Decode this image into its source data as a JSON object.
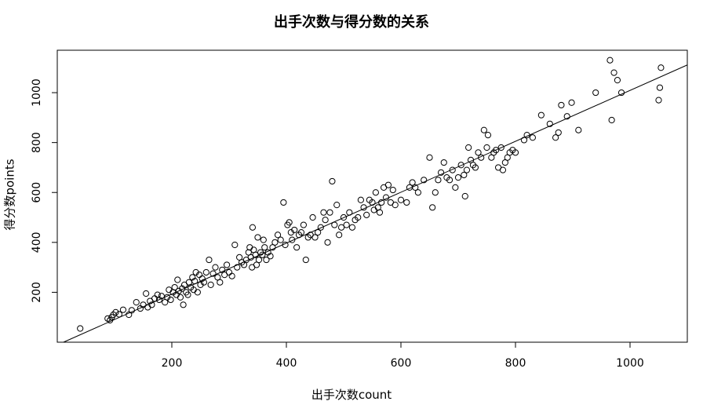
{
  "chart_data": {
    "type": "scatter",
    "title": "出手次数与得分数的关系",
    "xlabel": "出手次数count",
    "ylabel": "得分数points",
    "xlim": [
      0,
      1100
    ],
    "ylim": [
      0,
      1170
    ],
    "x_ticks": [
      200,
      400,
      600,
      800,
      1000
    ],
    "y_ticks": [
      200,
      400,
      600,
      800,
      1000
    ],
    "grid": false,
    "regression_line": {
      "slope": 1.02,
      "intercept": -11
    },
    "points": [
      [
        40,
        55
      ],
      [
        88,
        95
      ],
      [
        92,
        88
      ],
      [
        95,
        100
      ],
      [
        98,
        110
      ],
      [
        102,
        120
      ],
      [
        108,
        112
      ],
      [
        115,
        130
      ],
      [
        125,
        110
      ],
      [
        130,
        128
      ],
      [
        138,
        160
      ],
      [
        145,
        135
      ],
      [
        150,
        150
      ],
      [
        155,
        195
      ],
      [
        158,
        140
      ],
      [
        162,
        165
      ],
      [
        165,
        150
      ],
      [
        170,
        175
      ],
      [
        175,
        190
      ],
      [
        178,
        170
      ],
      [
        182,
        185
      ],
      [
        188,
        160
      ],
      [
        192,
        180
      ],
      [
        195,
        210
      ],
      [
        198,
        170
      ],
      [
        202,
        200
      ],
      [
        205,
        220
      ],
      [
        208,
        190
      ],
      [
        210,
        250
      ],
      [
        212,
        205
      ],
      [
        215,
        180
      ],
      [
        218,
        215
      ],
      [
        220,
        150
      ],
      [
        222,
        230
      ],
      [
        225,
        200
      ],
      [
        228,
        190
      ],
      [
        230,
        240
      ],
      [
        233,
        220
      ],
      [
        236,
        260
      ],
      [
        238,
        210
      ],
      [
        240,
        245
      ],
      [
        242,
        280
      ],
      [
        245,
        200
      ],
      [
        248,
        270
      ],
      [
        250,
        230
      ],
      [
        253,
        255
      ],
      [
        256,
        240
      ],
      [
        260,
        280
      ],
      [
        265,
        330
      ],
      [
        268,
        230
      ],
      [
        272,
        275
      ],
      [
        276,
        300
      ],
      [
        280,
        260
      ],
      [
        284,
        240
      ],
      [
        288,
        290
      ],
      [
        292,
        270
      ],
      [
        296,
        310
      ],
      [
        300,
        280
      ],
      [
        305,
        265
      ],
      [
        310,
        390
      ],
      [
        314,
        300
      ],
      [
        318,
        340
      ],
      [
        322,
        320
      ],
      [
        326,
        310
      ],
      [
        330,
        330
      ],
      [
        334,
        360
      ],
      [
        336,
        380
      ],
      [
        338,
        340
      ],
      [
        340,
        300
      ],
      [
        341,
        460
      ],
      [
        343,
        370
      ],
      [
        346,
        350
      ],
      [
        348,
        310
      ],
      [
        350,
        420
      ],
      [
        352,
        330
      ],
      [
        355,
        360
      ],
      [
        358,
        350
      ],
      [
        360,
        410
      ],
      [
        362,
        380
      ],
      [
        365,
        330
      ],
      [
        368,
        360
      ],
      [
        372,
        345
      ],
      [
        376,
        380
      ],
      [
        380,
        400
      ],
      [
        385,
        430
      ],
      [
        390,
        410
      ],
      [
        395,
        560
      ],
      [
        398,
        390
      ],
      [
        402,
        470
      ],
      [
        405,
        480
      ],
      [
        408,
        440
      ],
      [
        410,
        410
      ],
      [
        414,
        450
      ],
      [
        418,
        380
      ],
      [
        422,
        430
      ],
      [
        426,
        440
      ],
      [
        430,
        470
      ],
      [
        434,
        330
      ],
      [
        438,
        420
      ],
      [
        442,
        430
      ],
      [
        446,
        500
      ],
      [
        450,
        420
      ],
      [
        455,
        440
      ],
      [
        460,
        460
      ],
      [
        465,
        520
      ],
      [
        468,
        490
      ],
      [
        472,
        400
      ],
      [
        476,
        520
      ],
      [
        480,
        645
      ],
      [
        484,
        470
      ],
      [
        488,
        550
      ],
      [
        492,
        430
      ],
      [
        496,
        460
      ],
      [
        500,
        500
      ],
      [
        505,
        470
      ],
      [
        510,
        520
      ],
      [
        515,
        460
      ],
      [
        520,
        490
      ],
      [
        525,
        500
      ],
      [
        530,
        570
      ],
      [
        535,
        540
      ],
      [
        540,
        510
      ],
      [
        545,
        570
      ],
      [
        550,
        560
      ],
      [
        553,
        530
      ],
      [
        556,
        600
      ],
      [
        560,
        540
      ],
      [
        563,
        520
      ],
      [
        566,
        560
      ],
      [
        570,
        620
      ],
      [
        574,
        580
      ],
      [
        578,
        630
      ],
      [
        582,
        560
      ],
      [
        586,
        610
      ],
      [
        590,
        550
      ],
      [
        600,
        570
      ],
      [
        610,
        560
      ],
      [
        615,
        620
      ],
      [
        620,
        640
      ],
      [
        625,
        620
      ],
      [
        630,
        600
      ],
      [
        640,
        650
      ],
      [
        650,
        740
      ],
      [
        655,
        540
      ],
      [
        660,
        600
      ],
      [
        665,
        650
      ],
      [
        670,
        680
      ],
      [
        675,
        720
      ],
      [
        680,
        660
      ],
      [
        685,
        650
      ],
      [
        690,
        690
      ],
      [
        695,
        620
      ],
      [
        700,
        660
      ],
      [
        705,
        710
      ],
      [
        710,
        670
      ],
      [
        712,
        585
      ],
      [
        715,
        690
      ],
      [
        718,
        780
      ],
      [
        722,
        730
      ],
      [
        726,
        710
      ],
      [
        730,
        700
      ],
      [
        735,
        760
      ],
      [
        740,
        740
      ],
      [
        745,
        850
      ],
      [
        750,
        780
      ],
      [
        752,
        830
      ],
      [
        758,
        740
      ],
      [
        762,
        760
      ],
      [
        766,
        770
      ],
      [
        770,
        700
      ],
      [
        775,
        780
      ],
      [
        778,
        690
      ],
      [
        782,
        720
      ],
      [
        786,
        740
      ],
      [
        790,
        760
      ],
      [
        795,
        770
      ],
      [
        800,
        760
      ],
      [
        815,
        810
      ],
      [
        820,
        830
      ],
      [
        830,
        820
      ],
      [
        845,
        910
      ],
      [
        860,
        875
      ],
      [
        870,
        820
      ],
      [
        875,
        840
      ],
      [
        880,
        950
      ],
      [
        890,
        905
      ],
      [
        898,
        960
      ],
      [
        910,
        850
      ],
      [
        940,
        1000
      ],
      [
        965,
        1130
      ],
      [
        968,
        890
      ],
      [
        972,
        1080
      ],
      [
        978,
        1050
      ],
      [
        985,
        1000
      ],
      [
        1050,
        970
      ],
      [
        1052,
        1020
      ],
      [
        1054,
        1100
      ]
    ]
  }
}
